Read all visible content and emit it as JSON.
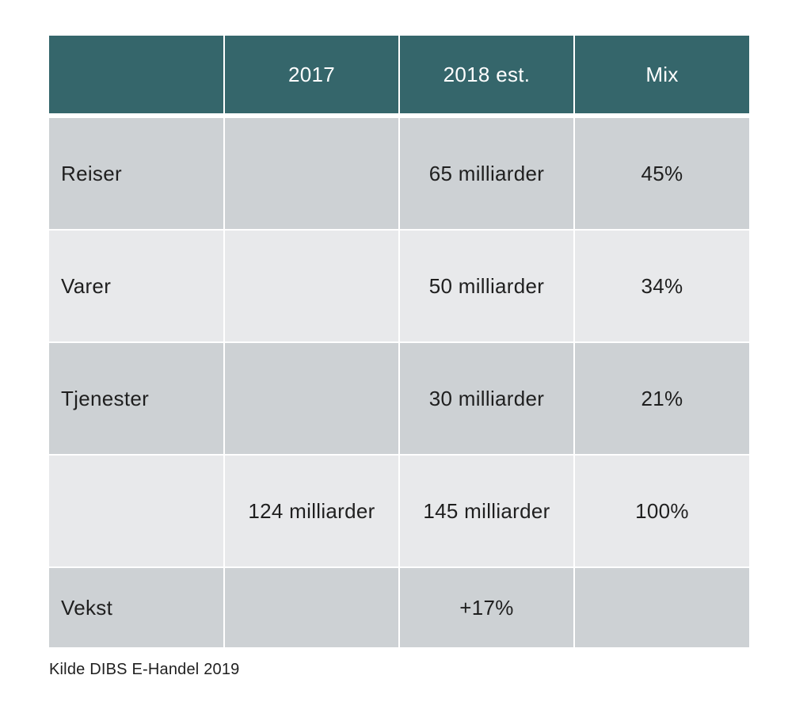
{
  "chart_data": {
    "type": "table",
    "columns": [
      "",
      "2017",
      "2018 est.",
      "Mix"
    ],
    "rows": [
      {
        "label": "Reiser",
        "y2017": "",
        "y2018": "65 milliarder",
        "mix": "45%"
      },
      {
        "label": "Varer",
        "y2017": "",
        "y2018": "50 milliarder",
        "mix": "34%"
      },
      {
        "label": "Tjenester",
        "y2017": "",
        "y2018": "30 milliarder",
        "mix": "21%"
      },
      {
        "label": "",
        "y2017": "124 milliarder",
        "y2018": "145 milliarder",
        "mix": "100%"
      },
      {
        "label": "Vekst",
        "y2017": "",
        "y2018": "+17%",
        "mix": ""
      }
    ],
    "source": "Kilde DIBS E-Handel 2019"
  },
  "colors": {
    "header_bg": "#35666b",
    "row_dark": "#cdd1d4",
    "row_light": "#e8e9eb"
  }
}
